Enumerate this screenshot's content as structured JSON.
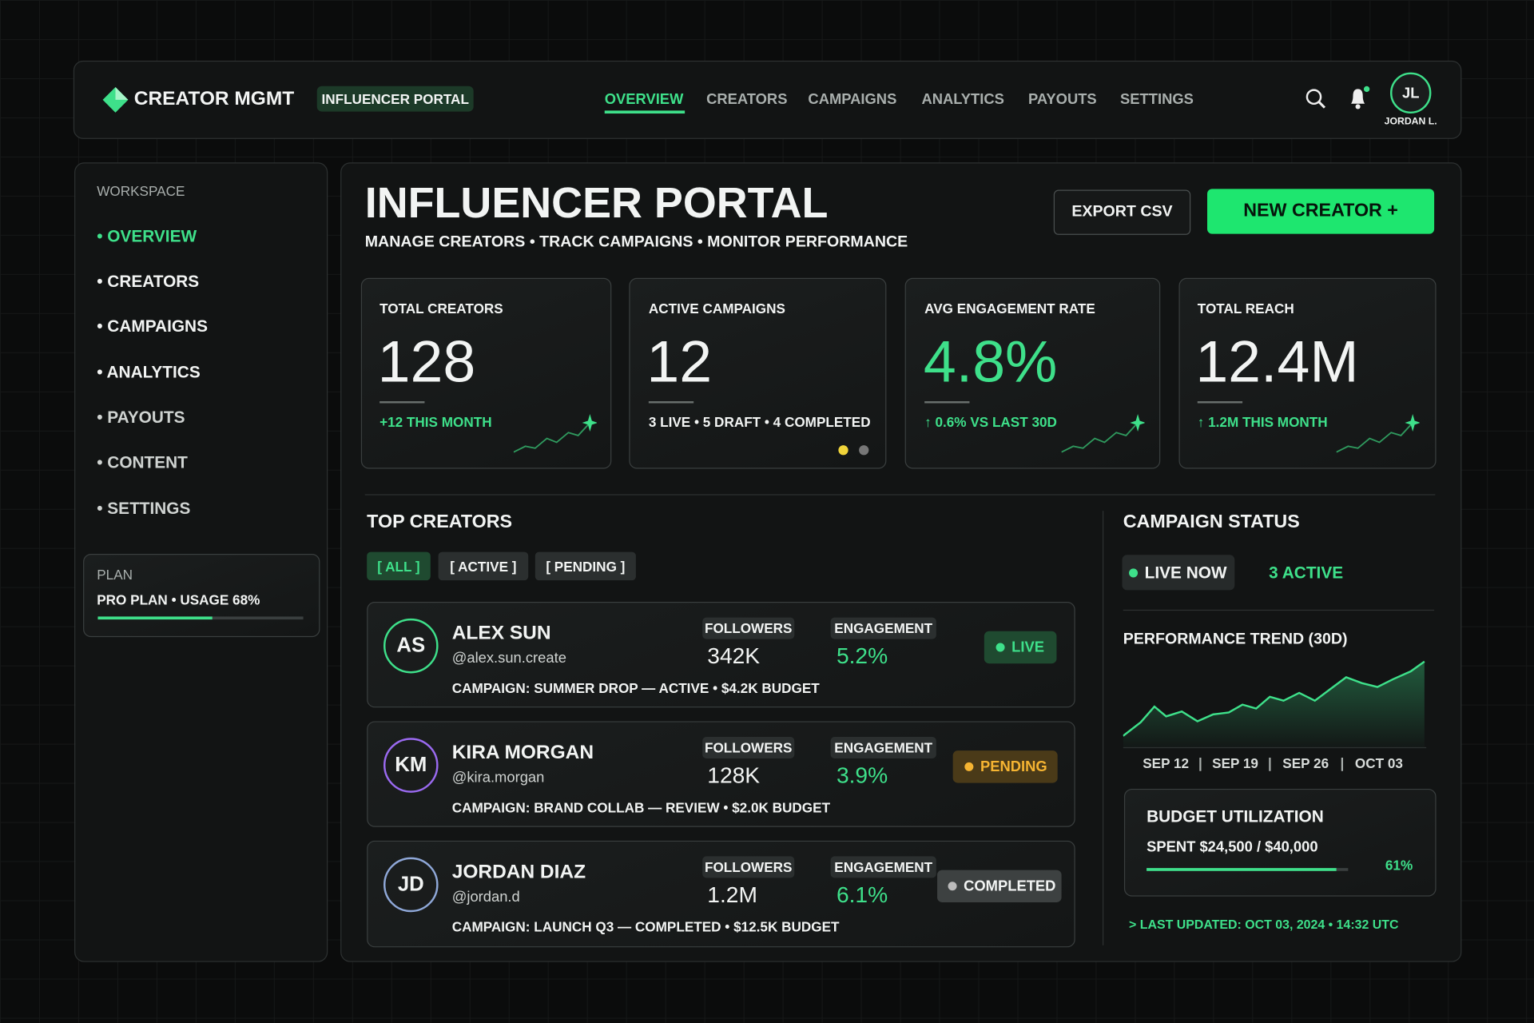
{
  "header": {
    "brand": "CREATOR MGMT",
    "badge": "INFLUENCER PORTAL",
    "nav": [
      "OVERVIEW",
      "CREATORS",
      "CAMPAIGNS",
      "ANALYTICS",
      "PAYOUTS",
      "SETTINGS"
    ],
    "avatar": "JL",
    "user": "JORDAN L."
  },
  "sidebar": {
    "section": "WORKSPACE",
    "items": [
      "• OVERVIEW",
      "• CREATORS",
      "• CAMPAIGNS",
      "• ANALYTICS",
      "• PAYOUTS",
      "• CONTENT",
      "• SETTINGS"
    ],
    "plan_label": "PLAN",
    "plan": "PRO PLAN • USAGE 68%"
  },
  "page": {
    "title": "INFLUENCER PORTAL",
    "subtitle": "MANAGE CREATORS • TRACK CAMPAIGNS • MONITOR PERFORMANCE",
    "export": "EXPORT CSV",
    "new_creator": "NEW CREATOR +"
  },
  "kpis": [
    {
      "label": "TOTAL CREATORS",
      "value": "128",
      "note": "+12 THIS MONTH"
    },
    {
      "label": "ACTIVE CAMPAIGNS",
      "value": "12",
      "note": "3 LIVE • 5 DRAFT • 4 COMPLETED"
    },
    {
      "label": "AVG ENGAGEMENT RATE",
      "value": "4.8%",
      "note": "↑ 0.6% VS LAST 30D"
    },
    {
      "label": "TOTAL REACH",
      "value": "12.4M",
      "note": "↑ 1.2M THIS MONTH"
    }
  ],
  "top_creators": {
    "title": "TOP CREATORS",
    "filters": [
      "[ ALL ]",
      "[ ACTIVE ]",
      "[ PENDING ]"
    ],
    "creators": [
      {
        "initials": "AS",
        "name": "ALEX SUN",
        "handle": "@alex.sun.create",
        "followers_label": "FOLLOWERS",
        "followers": "342K",
        "engagement_label": "ENGAGEMENT",
        "engagement": "5.2%",
        "status": "LIVE",
        "campaign": "CAMPAIGN: SUMMER DROP — ACTIVE • $4.2K BUDGET"
      },
      {
        "initials": "KM",
        "name": "KIRA MORGAN",
        "handle": "@kira.morgan",
        "followers_label": "FOLLOWERS",
        "followers": "128K",
        "engagement_label": "ENGAGEMENT",
        "engagement": "3.9%",
        "status": "PENDING",
        "campaign": "CAMPAIGN: BRAND COLLAB — REVIEW • $2.0K BUDGET"
      },
      {
        "initials": "JD",
        "name": "JORDAN DIAZ",
        "handle": "@jordan.d",
        "followers_label": "FOLLOWERS",
        "followers": "1.2M",
        "engagement_label": "ENGAGEMENT",
        "engagement": "6.1%",
        "status": "COMPLETED",
        "campaign": "CAMPAIGN: LAUNCH Q3 — COMPLETED • $12.5K BUDGET"
      }
    ]
  },
  "campaign_status": {
    "title": "CAMPAIGN STATUS",
    "live": "LIVE NOW",
    "active": "3 ACTIVE",
    "trend_title": "PERFORMANCE TREND (30D)",
    "dates": [
      "SEP 12",
      "SEP 19",
      "SEP 26",
      "OCT 03"
    ],
    "budget_title": "BUDGET UTILIZATION",
    "spent": "SPENT $24,500 / $40,000",
    "percent": "61%",
    "updated": "> LAST UPDATED: OCT 03, 2024 • 14:32 UTC"
  }
}
